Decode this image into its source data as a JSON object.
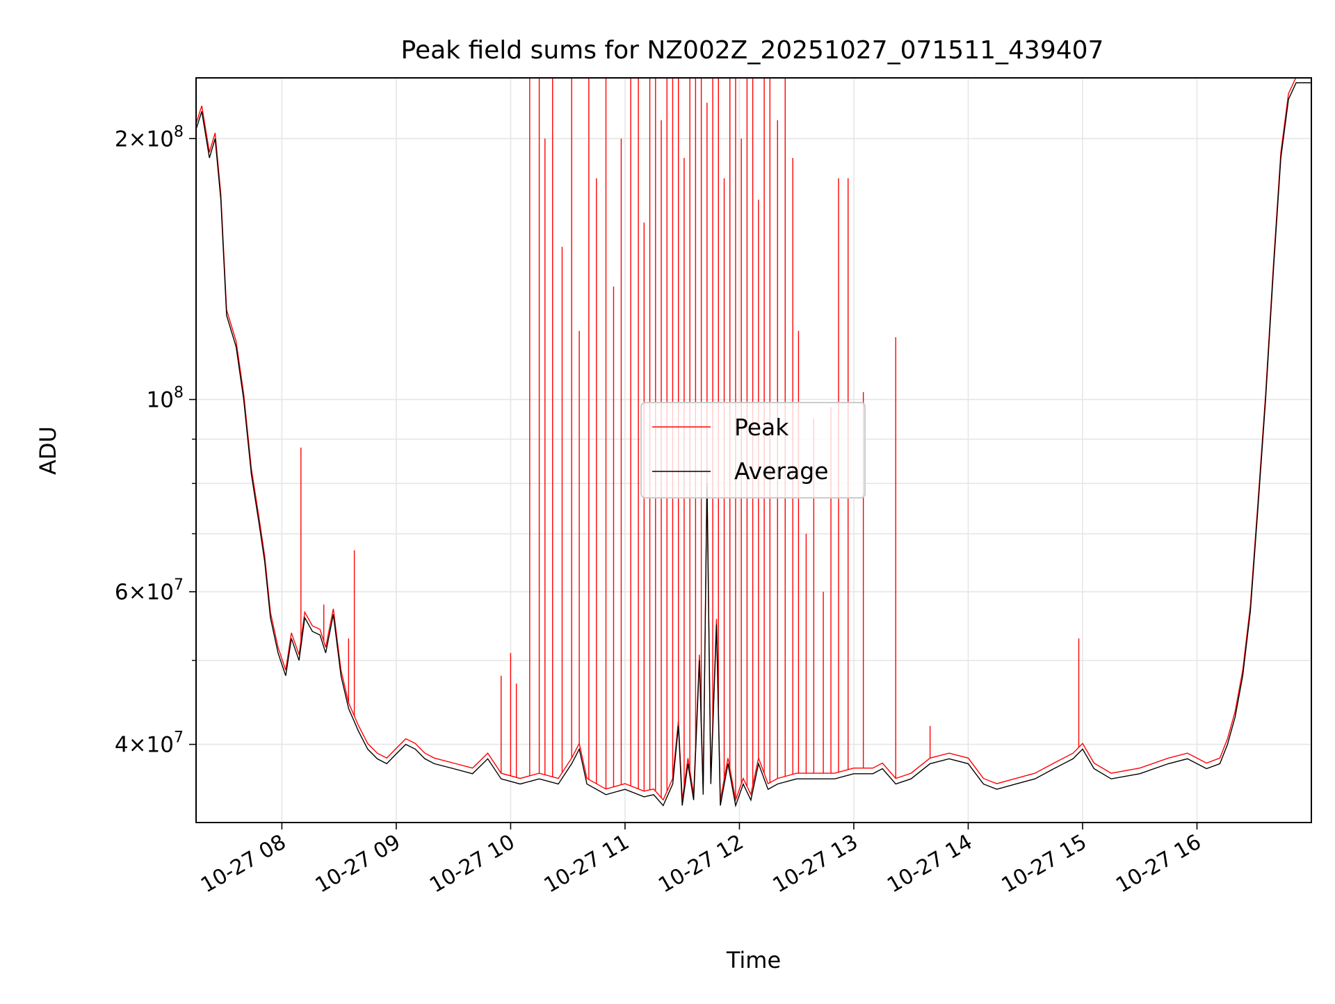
{
  "chart_data": {
    "type": "line",
    "title": "Peak field sums for NZ002Z_20251027_071511_439407",
    "xlabel": "Time",
    "ylabel": "ADU",
    "yscale": "log",
    "grid": true,
    "legend_position": "center",
    "xlim": [
      "2025-10-27T07:15",
      "2025-10-27T17:00"
    ],
    "ylim": [
      32500000,
      235000000
    ],
    "x_ticks": [
      {
        "value": "2025-10-27T08:00",
        "label": "10-27 08"
      },
      {
        "value": "2025-10-27T09:00",
        "label": "10-27 09"
      },
      {
        "value": "2025-10-27T10:00",
        "label": "10-27 10"
      },
      {
        "value": "2025-10-27T11:00",
        "label": "10-27 11"
      },
      {
        "value": "2025-10-27T12:00",
        "label": "10-27 12"
      },
      {
        "value": "2025-10-27T13:00",
        "label": "10-27 13"
      },
      {
        "value": "2025-10-27T14:00",
        "label": "10-27 14"
      },
      {
        "value": "2025-10-27T15:00",
        "label": "10-27 15"
      },
      {
        "value": "2025-10-27T16:00",
        "label": "10-27 16"
      }
    ],
    "y_ticks": [
      {
        "value": 40000000,
        "mantissa": "4",
        "base": "10",
        "exp": "7"
      },
      {
        "value": 60000000,
        "mantissa": "6",
        "base": "10",
        "exp": "7"
      },
      {
        "value": 100000000,
        "mantissa": "",
        "base": "10",
        "exp": "8"
      },
      {
        "value": 200000000,
        "mantissa": "2",
        "base": "10",
        "exp": "8"
      }
    ],
    "y_minor_ticks": [
      50000000,
      70000000,
      80000000,
      90000000
    ],
    "series": [
      {
        "name": "Average",
        "color": "#000000",
        "points": [
          [
            "2025-10-27T07:15",
            205000000
          ],
          [
            "2025-10-27T07:18",
            215000000
          ],
          [
            "2025-10-27T07:22",
            190000000
          ],
          [
            "2025-10-27T07:25",
            200000000
          ],
          [
            "2025-10-27T07:28",
            170000000
          ],
          [
            "2025-10-27T07:31",
            125000000
          ],
          [
            "2025-10-27T07:36",
            115000000
          ],
          [
            "2025-10-27T07:40",
            100000000
          ],
          [
            "2025-10-27T07:44",
            82000000
          ],
          [
            "2025-10-27T07:48",
            72000000
          ],
          [
            "2025-10-27T07:51",
            65000000
          ],
          [
            "2025-10-27T07:54",
            56000000
          ],
          [
            "2025-10-27T07:58",
            51000000
          ],
          [
            "2025-10-27T08:02",
            48000000
          ],
          [
            "2025-10-27T08:05",
            53000000
          ],
          [
            "2025-10-27T08:09",
            50000000
          ],
          [
            "2025-10-27T08:12",
            56000000
          ],
          [
            "2025-10-27T08:16",
            54000000
          ],
          [
            "2025-10-27T08:20",
            53500000
          ],
          [
            "2025-10-27T08:23",
            51000000
          ],
          [
            "2025-10-27T08:27",
            56500000
          ],
          [
            "2025-10-27T08:31",
            48000000
          ],
          [
            "2025-10-27T08:35",
            44000000
          ],
          [
            "2025-10-27T08:40",
            41500000
          ],
          [
            "2025-10-27T08:45",
            39500000
          ],
          [
            "2025-10-27T08:50",
            38500000
          ],
          [
            "2025-10-27T08:55",
            38000000
          ],
          [
            "2025-10-27T09:00",
            39000000
          ],
          [
            "2025-10-27T09:05",
            40000000
          ],
          [
            "2025-10-27T09:10",
            39500000
          ],
          [
            "2025-10-27T09:15",
            38500000
          ],
          [
            "2025-10-27T09:20",
            38000000
          ],
          [
            "2025-10-27T09:30",
            37500000
          ],
          [
            "2025-10-27T09:40",
            37000000
          ],
          [
            "2025-10-27T09:48",
            38500000
          ],
          [
            "2025-10-27T09:55",
            36500000
          ],
          [
            "2025-10-27T10:05",
            36000000
          ],
          [
            "2025-10-27T10:15",
            36500000
          ],
          [
            "2025-10-27T10:25",
            36000000
          ],
          [
            "2025-10-27T10:32",
            38000000
          ],
          [
            "2025-10-27T10:36",
            39500000
          ],
          [
            "2025-10-27T10:40",
            36000000
          ],
          [
            "2025-10-27T10:50",
            35000000
          ],
          [
            "2025-10-27T11:00",
            35500000
          ],
          [
            "2025-10-27T11:10",
            34800000
          ],
          [
            "2025-10-27T11:15",
            35000000
          ],
          [
            "2025-10-27T11:20",
            34000000
          ],
          [
            "2025-10-27T11:25",
            36000000
          ],
          [
            "2025-10-27T11:28",
            42000000
          ],
          [
            "2025-10-27T11:30",
            34000000
          ],
          [
            "2025-10-27T11:33",
            38000000
          ],
          [
            "2025-10-27T11:36",
            34500000
          ],
          [
            "2025-10-27T11:39",
            50000000
          ],
          [
            "2025-10-27T11:41",
            35000000
          ],
          [
            "2025-10-27T11:43",
            80000000
          ],
          [
            "2025-10-27T11:45",
            36000000
          ],
          [
            "2025-10-27T11:48",
            55000000
          ],
          [
            "2025-10-27T11:50",
            34000000
          ],
          [
            "2025-10-27T11:54",
            38000000
          ],
          [
            "2025-10-27T11:58",
            34000000
          ],
          [
            "2025-10-27T12:02",
            36000000
          ],
          [
            "2025-10-27T12:06",
            34500000
          ],
          [
            "2025-10-27T12:10",
            38000000
          ],
          [
            "2025-10-27T12:15",
            35500000
          ],
          [
            "2025-10-27T12:20",
            36000000
          ],
          [
            "2025-10-27T12:30",
            36500000
          ],
          [
            "2025-10-27T12:40",
            36500000
          ],
          [
            "2025-10-27T12:50",
            36500000
          ],
          [
            "2025-10-27T13:00",
            37000000
          ],
          [
            "2025-10-27T13:10",
            37000000
          ],
          [
            "2025-10-27T13:15",
            37500000
          ],
          [
            "2025-10-27T13:22",
            36000000
          ],
          [
            "2025-10-27T13:30",
            36500000
          ],
          [
            "2025-10-27T13:40",
            38000000
          ],
          [
            "2025-10-27T13:50",
            38500000
          ],
          [
            "2025-10-27T14:00",
            38000000
          ],
          [
            "2025-10-27T14:08",
            36000000
          ],
          [
            "2025-10-27T14:15",
            35500000
          ],
          [
            "2025-10-27T14:25",
            36000000
          ],
          [
            "2025-10-27T14:35",
            36500000
          ],
          [
            "2025-10-27T14:45",
            37500000
          ],
          [
            "2025-10-27T14:55",
            38500000
          ],
          [
            "2025-10-27T15:00",
            39500000
          ],
          [
            "2025-10-27T15:06",
            37500000
          ],
          [
            "2025-10-27T15:15",
            36500000
          ],
          [
            "2025-10-27T15:30",
            37000000
          ],
          [
            "2025-10-27T15:45",
            38000000
          ],
          [
            "2025-10-27T15:55",
            38500000
          ],
          [
            "2025-10-27T16:05",
            37500000
          ],
          [
            "2025-10-27T16:12",
            38000000
          ],
          [
            "2025-10-27T16:16",
            40000000
          ],
          [
            "2025-10-27T16:20",
            43000000
          ],
          [
            "2025-10-27T16:24",
            48000000
          ],
          [
            "2025-10-27T16:28",
            57000000
          ],
          [
            "2025-10-27T16:32",
            75000000
          ],
          [
            "2025-10-27T16:36",
            100000000
          ],
          [
            "2025-10-27T16:40",
            140000000
          ],
          [
            "2025-10-27T16:44",
            190000000
          ],
          [
            "2025-10-27T16:48",
            222000000
          ],
          [
            "2025-10-27T16:52",
            232000000
          ],
          [
            "2025-10-27T17:00",
            232000000
          ]
        ]
      },
      {
        "name": "Peak",
        "color": "#ff0000",
        "offset_ratio": 1.015,
        "spikes": [
          [
            "2025-10-27T08:10",
            88000000
          ],
          [
            "2025-10-27T08:22",
            58000000
          ],
          [
            "2025-10-27T08:35",
            53000000
          ],
          [
            "2025-10-27T08:38",
            67000000
          ],
          [
            "2025-10-27T09:55",
            48000000
          ],
          [
            "2025-10-27T10:00",
            51000000
          ],
          [
            "2025-10-27T10:03",
            47000000
          ],
          [
            "2025-10-27T10:10",
            235000000
          ],
          [
            "2025-10-27T10:15",
            235000000
          ],
          [
            "2025-10-27T10:18",
            200000000
          ],
          [
            "2025-10-27T10:22",
            235000000
          ],
          [
            "2025-10-27T10:27",
            150000000
          ],
          [
            "2025-10-27T10:32",
            235000000
          ],
          [
            "2025-10-27T10:36",
            120000000
          ],
          [
            "2025-10-27T10:41",
            235000000
          ],
          [
            "2025-10-27T10:45",
            180000000
          ],
          [
            "2025-10-27T10:50",
            235000000
          ],
          [
            "2025-10-27T10:54",
            135000000
          ],
          [
            "2025-10-27T10:58",
            200000000
          ],
          [
            "2025-10-27T11:03",
            235000000
          ],
          [
            "2025-10-27T11:07",
            235000000
          ],
          [
            "2025-10-27T11:10",
            160000000
          ],
          [
            "2025-10-27T11:13",
            235000000
          ],
          [
            "2025-10-27T11:16",
            235000000
          ],
          [
            "2025-10-27T11:19",
            210000000
          ],
          [
            "2025-10-27T11:22",
            235000000
          ],
          [
            "2025-10-27T11:25",
            235000000
          ],
          [
            "2025-10-27T11:28",
            235000000
          ],
          [
            "2025-10-27T11:31",
            190000000
          ],
          [
            "2025-10-27T11:34",
            235000000
          ],
          [
            "2025-10-27T11:37",
            235000000
          ],
          [
            "2025-10-27T11:40",
            235000000
          ],
          [
            "2025-10-27T11:43",
            220000000
          ],
          [
            "2025-10-27T11:46",
            235000000
          ],
          [
            "2025-10-27T11:49",
            235000000
          ],
          [
            "2025-10-27T11:52",
            180000000
          ],
          [
            "2025-10-27T11:55",
            235000000
          ],
          [
            "2025-10-27T11:58",
            235000000
          ],
          [
            "2025-10-27T12:01",
            200000000
          ],
          [
            "2025-10-27T12:04",
            235000000
          ],
          [
            "2025-10-27T12:07",
            235000000
          ],
          [
            "2025-10-27T12:10",
            170000000
          ],
          [
            "2025-10-27T12:13",
            235000000
          ],
          [
            "2025-10-27T12:16",
            235000000
          ],
          [
            "2025-10-27T12:20",
            210000000
          ],
          [
            "2025-10-27T12:24",
            235000000
          ],
          [
            "2025-10-27T12:28",
            190000000
          ],
          [
            "2025-10-27T12:31",
            120000000
          ],
          [
            "2025-10-27T12:35",
            70000000
          ],
          [
            "2025-10-27T12:39",
            95000000
          ],
          [
            "2025-10-27T12:44",
            60000000
          ],
          [
            "2025-10-27T12:48",
            98000000
          ],
          [
            "2025-10-27T12:52",
            180000000
          ],
          [
            "2025-10-27T12:57",
            180000000
          ],
          [
            "2025-10-27T13:05",
            102000000
          ],
          [
            "2025-10-27T13:22",
            118000000
          ],
          [
            "2025-10-27T13:40",
            42000000
          ],
          [
            "2025-10-27T14:58",
            53000000
          ]
        ]
      }
    ]
  }
}
